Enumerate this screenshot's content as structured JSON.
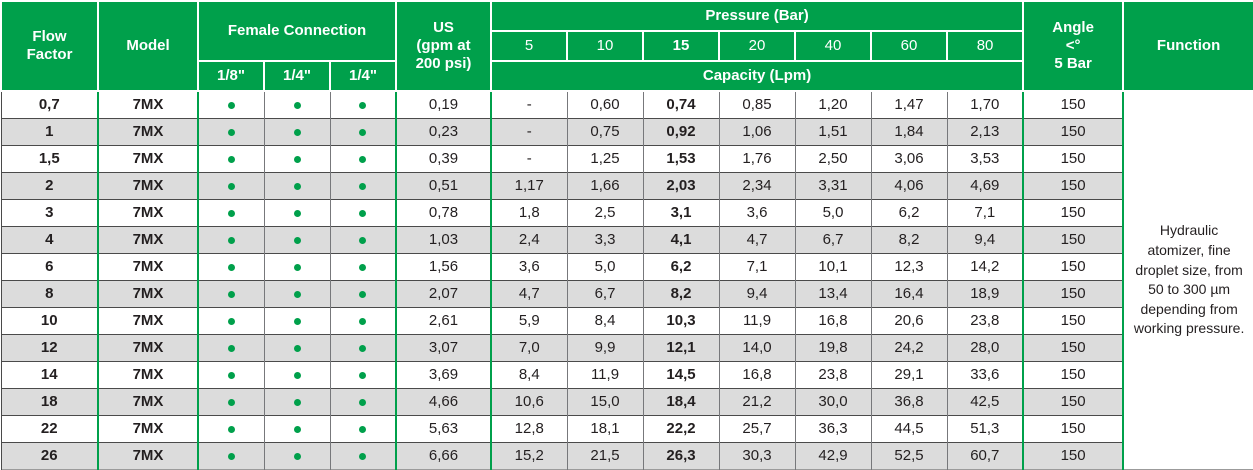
{
  "colors": {
    "header_green": "#00a04b",
    "stripe_gray": "#dcdcdc",
    "dot_green": "#00a04b"
  },
  "table": {
    "header": {
      "flow_factor": "Flow\nFactor",
      "model": "Model",
      "female_connection": "Female Connection",
      "connection_sizes": [
        "1/8\"",
        "1/4\"",
        "1/4\""
      ],
      "us": "US\n(gpm at\n200 psi)",
      "pressure": "Pressure (Bar)",
      "pressure_values": [
        "5",
        "10",
        "15",
        "20",
        "40",
        "60",
        "80"
      ],
      "capacity": "Capacity (Lpm)",
      "angle": "Angle\n<°\n5 Bar",
      "function": "Function"
    },
    "function_text": "Hydraulic atomizer, fine droplet size, from 50 to 300 µm depending from working pressure.",
    "rows": [
      {
        "flow": "0,7",
        "model": "7MX",
        "connections": [
          true,
          true,
          true
        ],
        "us": "0,19",
        "capacities": [
          "-",
          "0,60",
          "0,74",
          "0,85",
          "1,20",
          "1,47",
          "1,70"
        ],
        "angle": "150"
      },
      {
        "flow": "1",
        "model": "7MX",
        "connections": [
          true,
          true,
          true
        ],
        "us": "0,23",
        "capacities": [
          "-",
          "0,75",
          "0,92",
          "1,06",
          "1,51",
          "1,84",
          "2,13"
        ],
        "angle": "150"
      },
      {
        "flow": "1,5",
        "model": "7MX",
        "connections": [
          true,
          true,
          true
        ],
        "us": "0,39",
        "capacities": [
          "-",
          "1,25",
          "1,53",
          "1,76",
          "2,50",
          "3,06",
          "3,53"
        ],
        "angle": "150"
      },
      {
        "flow": "2",
        "model": "7MX",
        "connections": [
          true,
          true,
          true
        ],
        "us": "0,51",
        "capacities": [
          "1,17",
          "1,66",
          "2,03",
          "2,34",
          "3,31",
          "4,06",
          "4,69"
        ],
        "angle": "150"
      },
      {
        "flow": "3",
        "model": "7MX",
        "connections": [
          true,
          true,
          true
        ],
        "us": "0,78",
        "capacities": [
          "1,8",
          "2,5",
          "3,1",
          "3,6",
          "5,0",
          "6,2",
          "7,1"
        ],
        "angle": "150"
      },
      {
        "flow": "4",
        "model": "7MX",
        "connections": [
          true,
          true,
          true
        ],
        "us": "1,03",
        "capacities": [
          "2,4",
          "3,3",
          "4,1",
          "4,7",
          "6,7",
          "8,2",
          "9,4"
        ],
        "angle": "150"
      },
      {
        "flow": "6",
        "model": "7MX",
        "connections": [
          true,
          true,
          true
        ],
        "us": "1,56",
        "capacities": [
          "3,6",
          "5,0",
          "6,2",
          "7,1",
          "10,1",
          "12,3",
          "14,2"
        ],
        "angle": "150"
      },
      {
        "flow": "8",
        "model": "7MX",
        "connections": [
          true,
          true,
          true
        ],
        "us": "2,07",
        "capacities": [
          "4,7",
          "6,7",
          "8,2",
          "9,4",
          "13,4",
          "16,4",
          "18,9"
        ],
        "angle": "150"
      },
      {
        "flow": "10",
        "model": "7MX",
        "connections": [
          true,
          true,
          true
        ],
        "us": "2,61",
        "capacities": [
          "5,9",
          "8,4",
          "10,3",
          "11,9",
          "16,8",
          "20,6",
          "23,8"
        ],
        "angle": "150"
      },
      {
        "flow": "12",
        "model": "7MX",
        "connections": [
          true,
          true,
          true
        ],
        "us": "3,07",
        "capacities": [
          "7,0",
          "9,9",
          "12,1",
          "14,0",
          "19,8",
          "24,2",
          "28,0"
        ],
        "angle": "150"
      },
      {
        "flow": "14",
        "model": "7MX",
        "connections": [
          true,
          true,
          true
        ],
        "us": "3,69",
        "capacities": [
          "8,4",
          "11,9",
          "14,5",
          "16,8",
          "23,8",
          "29,1",
          "33,6"
        ],
        "angle": "150"
      },
      {
        "flow": "18",
        "model": "7MX",
        "connections": [
          true,
          true,
          true
        ],
        "us": "4,66",
        "capacities": [
          "10,6",
          "15,0",
          "18,4",
          "21,2",
          "30,0",
          "36,8",
          "42,5"
        ],
        "angle": "150"
      },
      {
        "flow": "22",
        "model": "7MX",
        "connections": [
          true,
          true,
          true
        ],
        "us": "5,63",
        "capacities": [
          "12,8",
          "18,1",
          "22,2",
          "25,7",
          "36,3",
          "44,5",
          "51,3"
        ],
        "angle": "150"
      },
      {
        "flow": "26",
        "model": "7MX",
        "connections": [
          true,
          true,
          true
        ],
        "us": "6,66",
        "capacities": [
          "15,2",
          "21,5",
          "26,3",
          "30,3",
          "42,9",
          "52,5",
          "60,7"
        ],
        "angle": "150"
      }
    ]
  }
}
